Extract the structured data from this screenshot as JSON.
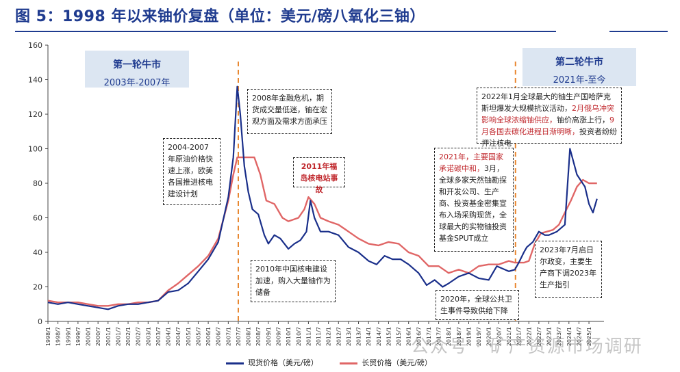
{
  "title": "图 5：1998 年以来铀价复盘（单位：美元/磅八氧化三铀）",
  "watermark": "公众号 · 矿产资源市场调研",
  "phases": [
    {
      "title": "第一轮牛市",
      "sub": "2003年-2007年"
    },
    {
      "title": "第二轮牛市",
      "sub": "2021年-至今"
    }
  ],
  "annotations": {
    "a2004": "2004-2007年原油价格快速上涨，欧美各国推进核电建设计划",
    "a2008": "2008年金融危机，期货成交量低迷，铀在宏观方面及需求方面承压",
    "a2011": "2011年福岛核电站事故",
    "a2010": "2010年中国核电建设加速，购入大量铀作为储备",
    "a2021_red": "2021年，主要国家承诺碳中和，",
    "a2021_rest": "3月，全球多家天然铀勘探和开发公司、生产商、投资基金密集宣布入场采购现货，全球最大的实物铀投资基金SPUT成立",
    "a2020": "2020年，全球公共卫生事件导致供给下降",
    "a2022_p1": "2022年1月全球最大的铀生产国哈萨克斯坦爆发大规模抗议活动，",
    "a2022_red1": "2月俄乌冲突影响全球浓缩铀供应，",
    "a2022_p2": "铀价高涨上行，",
    "a2022_red2": "9月各国去碳化进程日渐明晰，",
    "a2022_p3": "投资者纷纷押注核电",
    "a2023": "2023年7月启日尔政变，主要生产商下调2023年生产指引"
  },
  "colors": {
    "spot": "#1a2f8a",
    "term": "#e06666",
    "axis": "#444444",
    "marker": "#e8862e",
    "title": "#1f3b8f"
  },
  "chart_data": {
    "type": "line",
    "title": "1998 年以来铀价复盘",
    "xlabel": "",
    "ylabel": "美元/磅八氧化三铀",
    "ylim": [
      0,
      160
    ],
    "yticks": [
      0,
      20,
      40,
      60,
      80,
      100,
      120,
      140,
      160
    ],
    "xlim": [
      1998.0,
      2025.75
    ],
    "xtick_labels": [
      "1998/1",
      "1998/7",
      "1999/1",
      "1999/7",
      "2000/1",
      "2000/7",
      "2001/1",
      "2001/7",
      "2002/1",
      "2002/7",
      "2003/1",
      "2003/7",
      "2004/1",
      "2004/7",
      "2005/1",
      "2005/7",
      "2006/1",
      "2006/7",
      "2007/1",
      "2007/7",
      "2008/1",
      "2008/7",
      "2009/1",
      "2009/7",
      "2010/1",
      "2010/7",
      "2011/1",
      "2011/7",
      "2012/1",
      "2012/7",
      "2013/1",
      "2013/7",
      "2014/1",
      "2014/7",
      "2015/1",
      "2015/7",
      "2016/1",
      "2016/7",
      "2017/1",
      "2017/7",
      "2018/1",
      "2018/7",
      "2019/1",
      "2019/7",
      "2020/1",
      "2020/7",
      "2021/1",
      "2021/7",
      "2022/1",
      "2022/7",
      "2023/1",
      "2023/7",
      "2024/1",
      "2024/7",
      "2025/1"
    ],
    "vlines": [
      "2007/7",
      "2021/5"
    ],
    "legend_position": "bottom",
    "series": [
      {
        "name": "现货价格（美元/磅）",
        "x": [
          1998.0,
          1998.5,
          1999.0,
          1999.5,
          2000.0,
          2000.5,
          2001.0,
          2001.5,
          2002.0,
          2002.5,
          2003.0,
          2003.5,
          2004.0,
          2004.5,
          2005.0,
          2005.5,
          2006.0,
          2006.5,
          2007.0,
          2007.25,
          2007.45,
          2007.6,
          2007.8,
          2008.0,
          2008.2,
          2008.5,
          2008.8,
          2009.0,
          2009.3,
          2009.6,
          2010.0,
          2010.3,
          2010.6,
          2010.9,
          2011.1,
          2011.3,
          2011.6,
          2012.0,
          2012.5,
          2013.0,
          2013.5,
          2014.0,
          2014.4,
          2014.8,
          2015.2,
          2015.6,
          2016.0,
          2016.5,
          2016.9,
          2017.3,
          2017.7,
          2018.0,
          2018.5,
          2019.0,
          2019.5,
          2020.0,
          2020.4,
          2020.8,
          2021.0,
          2021.3,
          2021.5,
          2021.75,
          2021.9,
          2022.2,
          2022.5,
          2022.8,
          2023.0,
          2023.4,
          2023.8,
          2024.05,
          2024.4,
          2024.8,
          2025.0,
          2025.2,
          2025.4
        ],
        "y": [
          11,
          10,
          11,
          10,
          9,
          8,
          7,
          9,
          10,
          10,
          11,
          12,
          17,
          18,
          22,
          29,
          36,
          46,
          72,
          95,
          136,
          120,
          90,
          75,
          65,
          62,
          50,
          45,
          50,
          48,
          42,
          45,
          47,
          52,
          70,
          60,
          52,
          52,
          50,
          43,
          40,
          35,
          33,
          38,
          36,
          36,
          33,
          28,
          21,
          24,
          20,
          22,
          26,
          28,
          25,
          24,
          32,
          30,
          29,
          30,
          34,
          40,
          43,
          46,
          52,
          50,
          50,
          52,
          56,
          100,
          85,
          78,
          68,
          63,
          71
        ]
      },
      {
        "name": "长贸价格（美元/磅）",
        "x": [
          1998.0,
          1998.5,
          1999.0,
          1999.5,
          2000.0,
          2000.5,
          2001.0,
          2001.5,
          2002.0,
          2002.5,
          2003.0,
          2003.5,
          2004.0,
          2004.5,
          2005.0,
          2005.5,
          2006.0,
          2006.5,
          2007.0,
          2007.25,
          2007.45,
          2007.8,
          2008.3,
          2008.6,
          2008.9,
          2009.3,
          2009.7,
          2010.0,
          2010.5,
          2010.8,
          2011.0,
          2011.3,
          2011.6,
          2012.0,
          2012.5,
          2013.0,
          2013.5,
          2014.0,
          2014.5,
          2015.0,
          2015.5,
          2016.0,
          2016.5,
          2017.0,
          2017.5,
          2018.0,
          2018.5,
          2019.0,
          2019.5,
          2020.0,
          2020.5,
          2021.0,
          2021.3,
          2021.5,
          2021.75,
          2022.0,
          2022.3,
          2022.6,
          2022.9,
          2023.2,
          2023.5,
          2023.8,
          2024.1,
          2024.4,
          2024.7,
          2025.0,
          2025.4
        ],
        "y": [
          12,
          11,
          11,
          11,
          10,
          9,
          9,
          10,
          10,
          11,
          11,
          12,
          18,
          22,
          27,
          32,
          38,
          48,
          70,
          85,
          95,
          95,
          95,
          85,
          70,
          68,
          60,
          58,
          60,
          65,
          72,
          68,
          60,
          58,
          56,
          52,
          48,
          45,
          44,
          46,
          45,
          40,
          38,
          32,
          32,
          28,
          30,
          28,
          32,
          33,
          33,
          35,
          34,
          34,
          34,
          35,
          45,
          51,
          52,
          53,
          56,
          63,
          70,
          78,
          82,
          80,
          80
        ]
      }
    ]
  }
}
